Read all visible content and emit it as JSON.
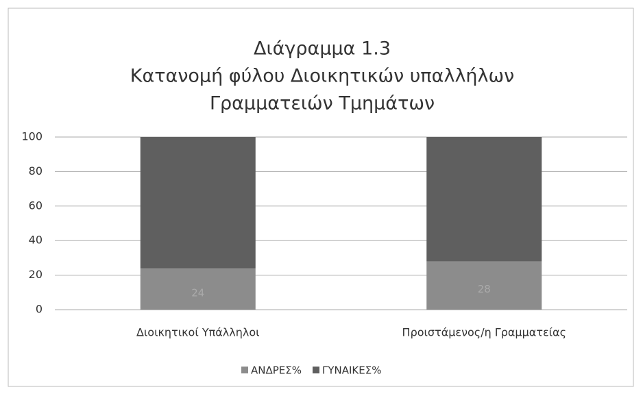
{
  "chart_data": {
    "type": "stacked_bar",
    "title": [
      "Διάγραμμα 1.3",
      "Κατανομή φύλου Διοικητικών υπαλλήλων",
      "Γραμματειών Τμημάτων"
    ],
    "categories": [
      "Διοικητικοί Υπάλληλοι",
      "Προιστάμενος/η Γραμματείας"
    ],
    "series": [
      {
        "name": "ΑΝΔΡΕΣ%",
        "color": "#8c8c8c",
        "values": [
          24,
          28
        ],
        "show_labels": true
      },
      {
        "name": "ΓΥΝΑΙΚΕΣ%",
        "color": "#5f5f5f",
        "values": [
          76,
          72
        ],
        "show_labels": false
      }
    ],
    "ylim": [
      0,
      100
    ],
    "yticks": [
      0,
      20,
      40,
      60,
      80,
      100
    ],
    "grid": true,
    "legend": "bottom"
  }
}
